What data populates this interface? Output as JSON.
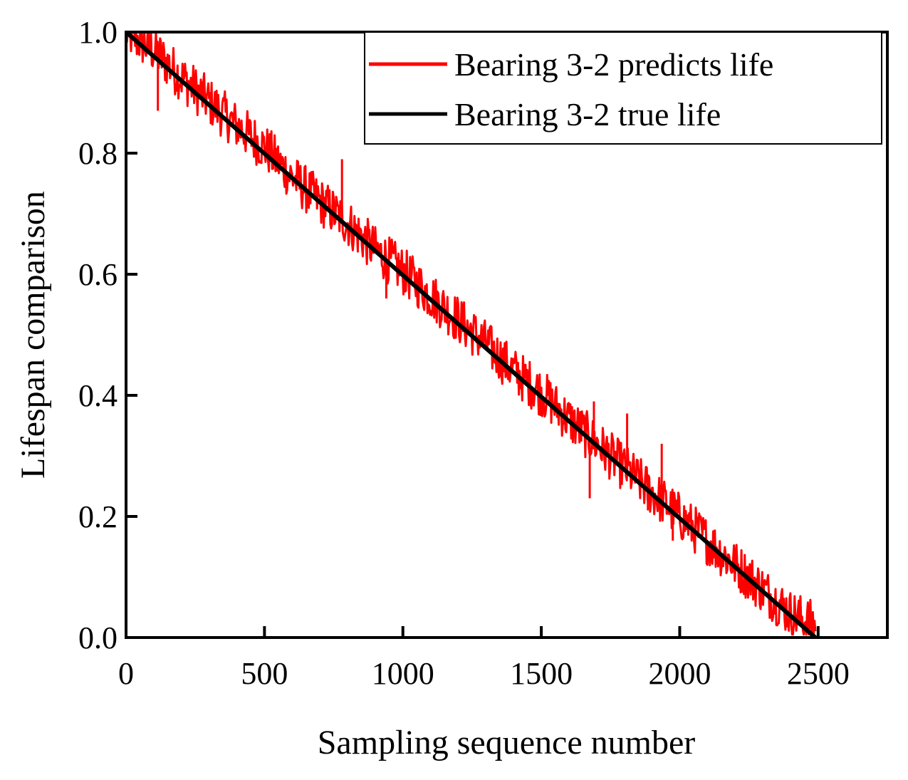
{
  "chart_data": {
    "type": "line",
    "title": "",
    "xlabel": "Sampling sequence number",
    "ylabel": "Lifespan comparison",
    "xlim": [
      0,
      2750
    ],
    "ylim": [
      0,
      1.0
    ],
    "xticks": [
      0,
      500,
      1000,
      1500,
      2000,
      2500
    ],
    "xtick_labels": [
      "0",
      "500",
      "1000",
      "1500",
      "2000",
      "2500"
    ],
    "yticks": [
      0,
      0.2,
      0.4,
      0.6,
      0.8,
      1.0
    ],
    "ytick_labels": [
      "0.0",
      "0.2",
      "0.4",
      "0.6",
      "0.8",
      "1.0"
    ],
    "grid": false,
    "legend_position": "top-right",
    "series": [
      {
        "name": "Bearing 3-2 predicts life",
        "color": "#ff0000",
        "x": [
          0,
          100,
          200,
          300,
          400,
          500,
          600,
          700,
          800,
          900,
          1000,
          1100,
          1200,
          1300,
          1400,
          1500,
          1600,
          1700,
          1800,
          1900,
          2000,
          2100,
          2200,
          2300,
          2400,
          2490
        ],
        "y": [
          1.0,
          0.97,
          0.925,
          0.885,
          0.845,
          0.81,
          0.76,
          0.72,
          0.685,
          0.64,
          0.605,
          0.565,
          0.525,
          0.485,
          0.44,
          0.405,
          0.36,
          0.32,
          0.28,
          0.24,
          0.2,
          0.16,
          0.12,
          0.08,
          0.04,
          0.02
        ],
        "noise_amplitude": 0.04,
        "outliers": [
          {
            "x": 115,
            "y": 0.87
          },
          {
            "x": 780,
            "y": 0.79
          },
          {
            "x": 940,
            "y": 0.56
          },
          {
            "x": 1675,
            "y": 0.23
          },
          {
            "x": 1690,
            "y": 0.39
          },
          {
            "x": 1810,
            "y": 0.37
          },
          {
            "x": 1885,
            "y": 0.21
          },
          {
            "x": 1935,
            "y": 0.32
          },
          {
            "x": 1975,
            "y": 0.16
          }
        ]
      },
      {
        "name": "Bearing 3-2 true life",
        "color": "#000000",
        "x": [
          0,
          2490
        ],
        "y": [
          1.0,
          0.0
        ]
      }
    ]
  }
}
